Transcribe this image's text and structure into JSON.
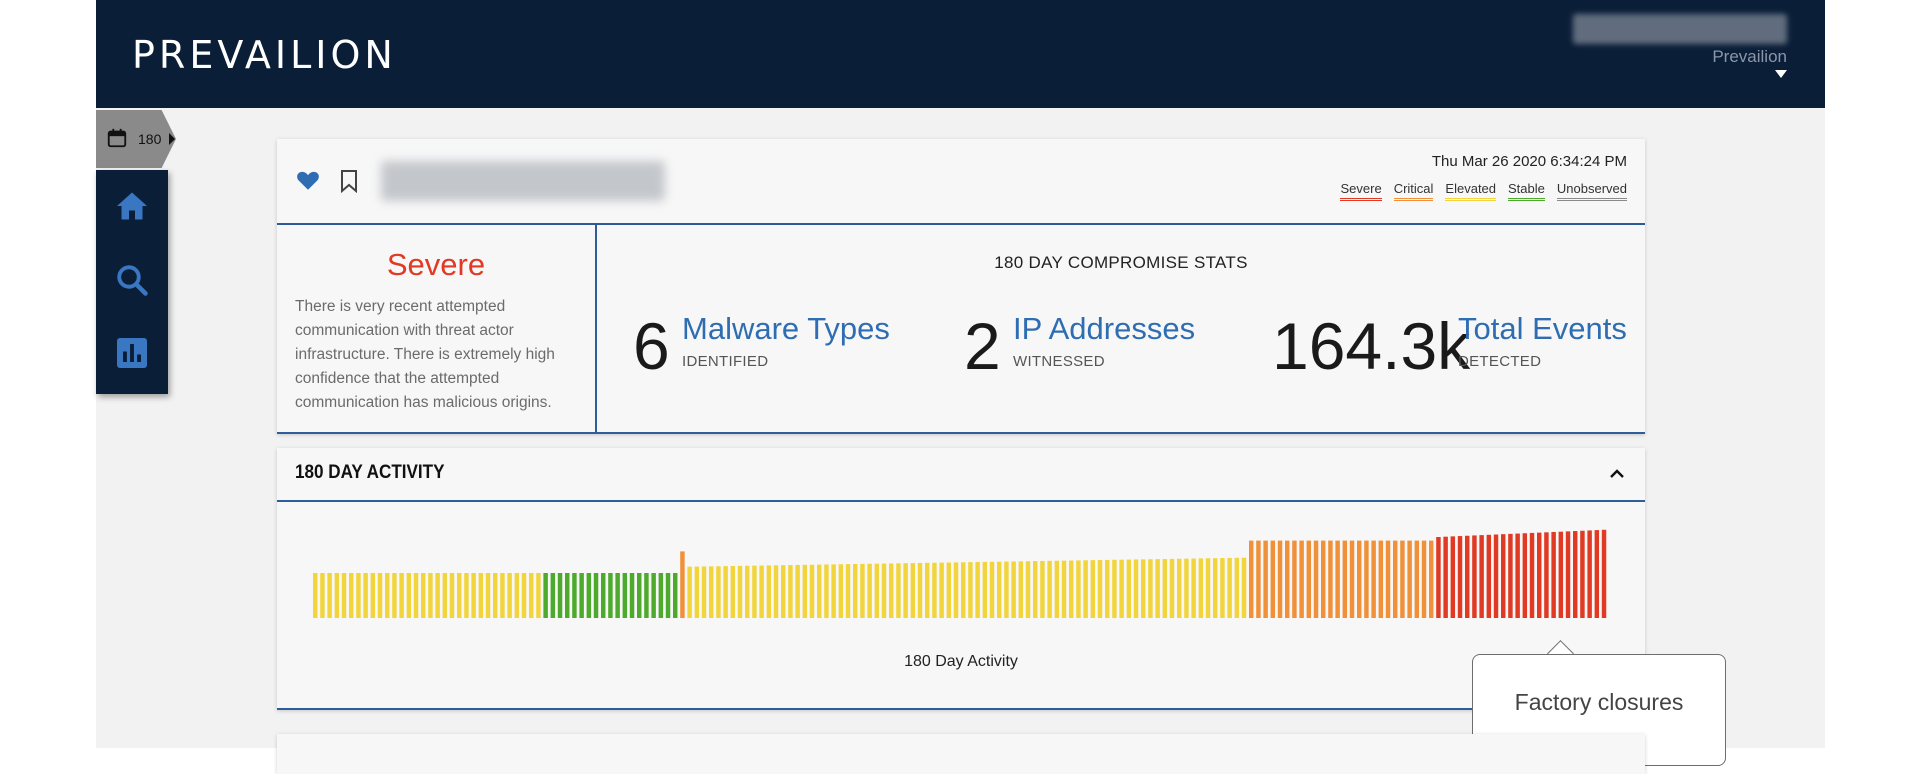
{
  "topbar": {
    "logo": "PREVAILION",
    "user_name": "Prevailion"
  },
  "range": {
    "label": "180"
  },
  "sidenav": {
    "items": [
      "home-icon",
      "search-icon",
      "bar-chart-icon"
    ]
  },
  "header": {
    "date": "Thu Mar 26 2020 6:34:24 PM",
    "legend": [
      {
        "label": "Severe",
        "color": "#e03a24"
      },
      {
        "label": "Critical",
        "color": "#f0913a"
      },
      {
        "label": "Elevated",
        "color": "#f2d53d"
      },
      {
        "label": "Stable",
        "color": "#4daa2c"
      },
      {
        "label": "Unobserved",
        "color": "#8a8a8a"
      }
    ]
  },
  "severity": {
    "title": "Severe",
    "description": "There is very recent attempted communication with threat actor infrastructure. There is extremely high confidence that the attempted communication has malicious origins."
  },
  "stats": {
    "title": "180 DAY COMPROMISE STATS",
    "items": [
      {
        "value": "6",
        "label": "Malware Types",
        "sub": "IDENTIFIED"
      },
      {
        "value": "2",
        "label": "IP Addresses",
        "sub": "WITNESSED"
      },
      {
        "value": "164.3k",
        "label": "Total Events",
        "sub": "DETECTED"
      }
    ]
  },
  "activity": {
    "title": "180 DAY ACTIVITY",
    "chart_label": "180 Day Activity"
  },
  "tooltip": {
    "text": "Factory closures"
  },
  "colors": {
    "navy": "#0a1e38",
    "accent_blue": "#2f5d9c",
    "link_blue": "#2f6db3",
    "severe": "#e03a24",
    "critical": "#f0913a",
    "elevated": "#f2d53d",
    "stable": "#4daa2c"
  },
  "chart_data": {
    "type": "bar",
    "title": "180 Day Activity",
    "x": "days 1-180",
    "segments": [
      {
        "status": "Elevated",
        "days": 32,
        "level": 0.5
      },
      {
        "status": "Stable",
        "days": 19,
        "level": 0.5
      },
      {
        "status": "Critical",
        "days": 1,
        "level": 0.74
      },
      {
        "status": "Elevated",
        "days": 78,
        "level_start": 0.57,
        "level_end": 0.67
      },
      {
        "status": "Critical",
        "days": 26,
        "level": 0.86
      },
      {
        "status": "Severe",
        "days": 24,
        "level_start": 0.9,
        "level_end": 0.98
      }
    ]
  }
}
